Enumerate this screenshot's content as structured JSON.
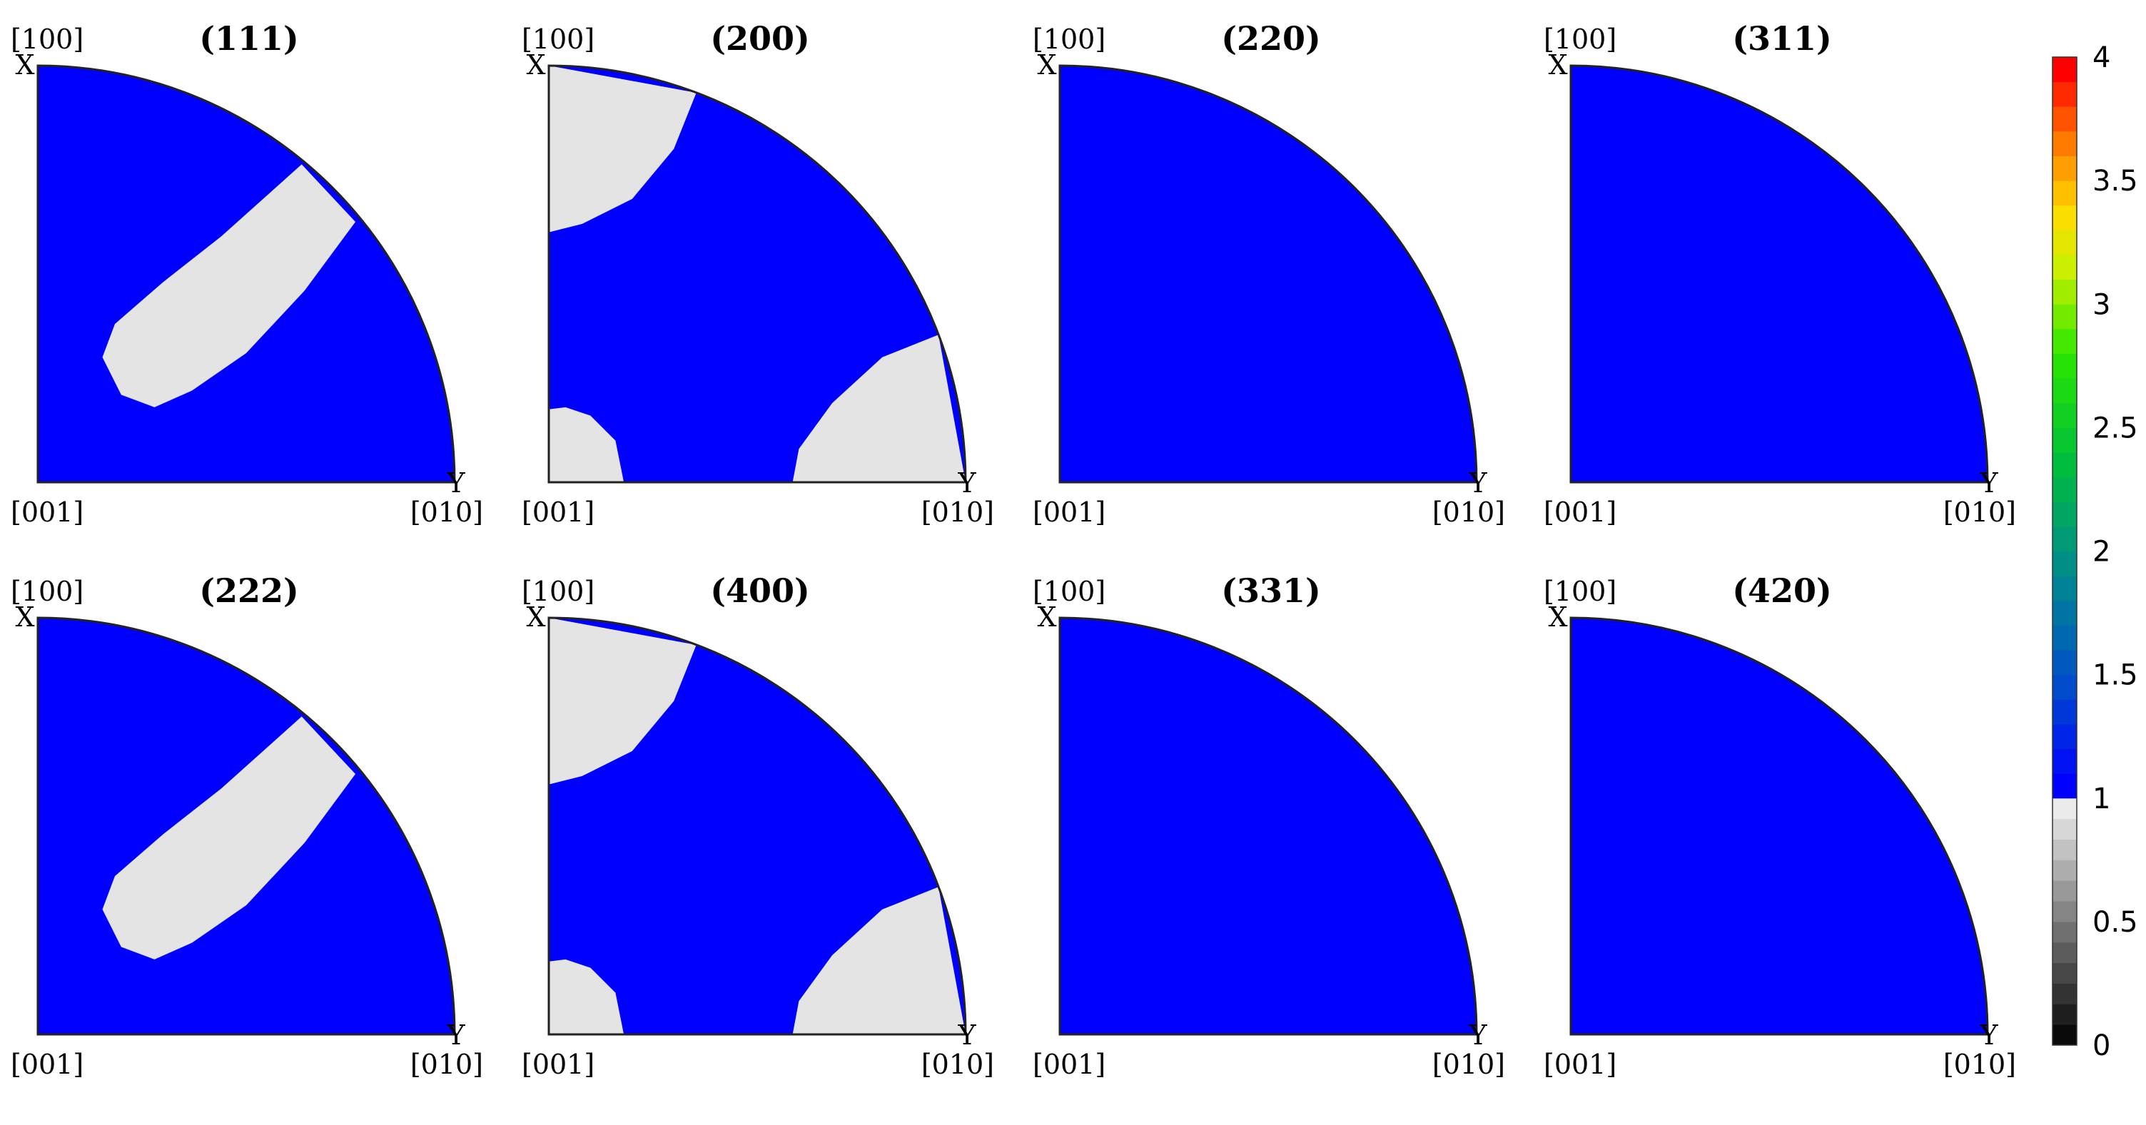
{
  "chart_data": {
    "type": "heatmap",
    "description_kind": "inverse pole figure grid",
    "color_scale": {
      "min": 0,
      "max": 4,
      "ticks": [
        "0",
        "0.5",
        "1",
        "1.5",
        "2",
        "2.5",
        "3",
        "3.5",
        "4"
      ]
    },
    "colors": {
      "high_region": "#0000ff",
      "low_region": "#e4e4e4",
      "outline": "#222222"
    },
    "pole_labels": {
      "top": "[100]",
      "origin": "[001]",
      "right": "[010]",
      "x_letter": "X",
      "y_letter": "Y"
    },
    "panels": [
      {
        "title": "(111)",
        "pattern": "ridge",
        "range": [
          0.9,
          1.1
        ]
      },
      {
        "title": "(200)",
        "pattern": "corners",
        "range": [
          0.9,
          1.1
        ]
      },
      {
        "title": "(220)",
        "pattern": "uniform",
        "range": [
          1.0,
          1.1
        ]
      },
      {
        "title": "(311)",
        "pattern": "uniform",
        "range": [
          1.0,
          1.1
        ]
      },
      {
        "title": "(222)",
        "pattern": "ridge",
        "range": [
          0.9,
          1.1
        ]
      },
      {
        "title": "(400)",
        "pattern": "corners",
        "range": [
          0.9,
          1.1
        ]
      },
      {
        "title": "(331)",
        "pattern": "uniform",
        "range": [
          1.0,
          1.1
        ]
      },
      {
        "title": "(420)",
        "pattern": "uniform",
        "range": [
          1.0,
          1.1
        ]
      }
    ]
  }
}
